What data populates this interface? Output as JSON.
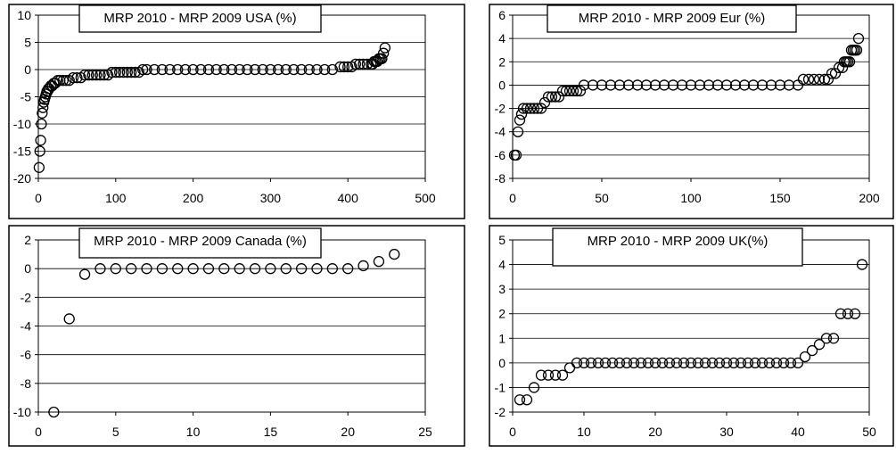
{
  "chart_data": [
    {
      "type": "scatter",
      "title": "MRP 2010 - MRP 2009 USA (%)",
      "xlim": [
        0,
        500
      ],
      "ylim": [
        -20,
        10
      ],
      "x_ticks": [
        "0",
        "100",
        "200",
        "300",
        "400",
        "500"
      ],
      "y_ticks": [
        "10",
        "5",
        "0",
        "-5",
        "-10",
        "-15",
        "-20"
      ],
      "grid": "horizontal",
      "marker": "open-circle",
      "series": [
        {
          "points": [
            [
              1,
              -18
            ],
            [
              2,
              -15
            ],
            [
              3,
              -13
            ],
            [
              4,
              -10
            ],
            [
              5,
              -8
            ],
            [
              6,
              -7
            ],
            [
              7,
              -6
            ],
            [
              8,
              -5.5
            ],
            [
              9,
              -5
            ],
            [
              10,
              -4.5
            ],
            [
              11,
              -4
            ],
            [
              12,
              -4
            ],
            [
              13,
              -3.5
            ],
            [
              14,
              -3.5
            ],
            [
              16,
              -3
            ],
            [
              18,
              -3
            ],
            [
              20,
              -2.5
            ],
            [
              22,
              -2.5
            ],
            [
              25,
              -2
            ],
            [
              28,
              -2
            ],
            [
              32,
              -2
            ],
            [
              36,
              -2
            ],
            [
              40,
              -2
            ],
            [
              45,
              -1.5
            ],
            [
              50,
              -1.5
            ],
            [
              55,
              -1.5
            ],
            [
              60,
              -1
            ],
            [
              65,
              -1
            ],
            [
              70,
              -1
            ],
            [
              75,
              -1
            ],
            [
              80,
              -1
            ],
            [
              85,
              -1
            ],
            [
              90,
              -1
            ],
            [
              95,
              -0.5
            ],
            [
              100,
              -0.5
            ],
            [
              105,
              -0.5
            ],
            [
              110,
              -0.5
            ],
            [
              115,
              -0.5
            ],
            [
              120,
              -0.5
            ],
            [
              125,
              -0.5
            ],
            [
              130,
              -0.5
            ],
            [
              135,
              0
            ],
            [
              140,
              0
            ],
            [
              150,
              0
            ],
            [
              160,
              0
            ],
            [
              170,
              0
            ],
            [
              180,
              0
            ],
            [
              190,
              0
            ],
            [
              200,
              0
            ],
            [
              210,
              0
            ],
            [
              220,
              0
            ],
            [
              230,
              0
            ],
            [
              240,
              0
            ],
            [
              250,
              0
            ],
            [
              260,
              0
            ],
            [
              270,
              0
            ],
            [
              280,
              0
            ],
            [
              290,
              0
            ],
            [
              300,
              0
            ],
            [
              310,
              0
            ],
            [
              320,
              0
            ],
            [
              330,
              0
            ],
            [
              340,
              0
            ],
            [
              350,
              0
            ],
            [
              360,
              0
            ],
            [
              370,
              0
            ],
            [
              380,
              0
            ],
            [
              390,
              0.5
            ],
            [
              395,
              0.5
            ],
            [
              400,
              0.5
            ],
            [
              405,
              0.5
            ],
            [
              410,
              1
            ],
            [
              415,
              1
            ],
            [
              420,
              1
            ],
            [
              425,
              1
            ],
            [
              430,
              1
            ],
            [
              432,
              1
            ],
            [
              434,
              1.5
            ],
            [
              436,
              1.5
            ],
            [
              438,
              1.5
            ],
            [
              440,
              2
            ],
            [
              442,
              2
            ],
            [
              444,
              2
            ],
            [
              446,
              3
            ],
            [
              448,
              4
            ]
          ]
        }
      ]
    },
    {
      "type": "scatter",
      "title": "MRP 2010 - MRP 2009  Eur (%)",
      "xlim": [
        0,
        200
      ],
      "ylim": [
        -8,
        6
      ],
      "x_ticks": [
        "0",
        "50",
        "100",
        "150",
        "200"
      ],
      "y_ticks": [
        "6",
        "4",
        "2",
        "0",
        "-2",
        "-4",
        "-6",
        "-8"
      ],
      "grid": "horizontal",
      "marker": "open-circle",
      "series": [
        {
          "points": [
            [
              1,
              -6
            ],
            [
              2,
              -6
            ],
            [
              3,
              -4
            ],
            [
              4,
              -3
            ],
            [
              5,
              -2.5
            ],
            [
              6,
              -2
            ],
            [
              8,
              -2
            ],
            [
              10,
              -2
            ],
            [
              12,
              -2
            ],
            [
              14,
              -2
            ],
            [
              16,
              -2
            ],
            [
              18,
              -1.5
            ],
            [
              20,
              -1
            ],
            [
              22,
              -1
            ],
            [
              24,
              -1
            ],
            [
              26,
              -1
            ],
            [
              28,
              -0.5
            ],
            [
              30,
              -0.5
            ],
            [
              32,
              -0.5
            ],
            [
              34,
              -0.5
            ],
            [
              36,
              -0.5
            ],
            [
              38,
              -0.5
            ],
            [
              40,
              0
            ],
            [
              45,
              0
            ],
            [
              50,
              0
            ],
            [
              55,
              0
            ],
            [
              60,
              0
            ],
            [
              65,
              0
            ],
            [
              70,
              0
            ],
            [
              75,
              0
            ],
            [
              80,
              0
            ],
            [
              85,
              0
            ],
            [
              90,
              0
            ],
            [
              95,
              0
            ],
            [
              100,
              0
            ],
            [
              105,
              0
            ],
            [
              110,
              0
            ],
            [
              115,
              0
            ],
            [
              120,
              0
            ],
            [
              125,
              0
            ],
            [
              130,
              0
            ],
            [
              135,
              0
            ],
            [
              140,
              0
            ],
            [
              145,
              0
            ],
            [
              150,
              0
            ],
            [
              155,
              0
            ],
            [
              160,
              0
            ],
            [
              163,
              0.5
            ],
            [
              166,
              0.5
            ],
            [
              169,
              0.5
            ],
            [
              172,
              0.5
            ],
            [
              175,
              0.5
            ],
            [
              177,
              0.5
            ],
            [
              179,
              1
            ],
            [
              181,
              1
            ],
            [
              183,
              1.5
            ],
            [
              185,
              1.5
            ],
            [
              186,
              2
            ],
            [
              187,
              2
            ],
            [
              188,
              2
            ],
            [
              189,
              2
            ],
            [
              190,
              3
            ],
            [
              191,
              3
            ],
            [
              192,
              3
            ],
            [
              193,
              3
            ],
            [
              194,
              4
            ]
          ]
        }
      ]
    },
    {
      "type": "scatter",
      "title": "MRP 2010 - MRP 2009  Canada (%)",
      "xlim": [
        0,
        25
      ],
      "ylim": [
        -10,
        2
      ],
      "x_ticks": [
        "0",
        "5",
        "10",
        "15",
        "20",
        "25"
      ],
      "y_ticks": [
        "2",
        "0",
        "-2",
        "-4",
        "-6",
        "-8",
        "-10"
      ],
      "grid": "horizontal",
      "marker": "open-circle",
      "series": [
        {
          "points": [
            [
              1,
              -10
            ],
            [
              2,
              -3.5
            ],
            [
              3,
              -0.4
            ],
            [
              4,
              0
            ],
            [
              5,
              0
            ],
            [
              6,
              0
            ],
            [
              7,
              0
            ],
            [
              8,
              0
            ],
            [
              9,
              0
            ],
            [
              10,
              0
            ],
            [
              11,
              0
            ],
            [
              12,
              0
            ],
            [
              13,
              0
            ],
            [
              14,
              0
            ],
            [
              15,
              0
            ],
            [
              16,
              0
            ],
            [
              17,
              0
            ],
            [
              18,
              0
            ],
            [
              19,
              0
            ],
            [
              20,
              0
            ],
            [
              21,
              0.2
            ],
            [
              22,
              0.5
            ],
            [
              23,
              1
            ]
          ]
        }
      ]
    },
    {
      "type": "scatter",
      "title": "MRP 2010 - MRP 2009  UK(%)",
      "xlim": [
        0,
        50
      ],
      "ylim": [
        -2,
        5
      ],
      "x_ticks": [
        "0",
        "10",
        "20",
        "30",
        "40",
        "50"
      ],
      "y_ticks": [
        "5",
        "4",
        "3",
        "2",
        "1",
        "0",
        "-1",
        "-2"
      ],
      "grid": "horizontal",
      "marker": "open-circle",
      "series": [
        {
          "points": [
            [
              1,
              -1.5
            ],
            [
              2,
              -1.5
            ],
            [
              3,
              -1
            ],
            [
              4,
              -0.5
            ],
            [
              5,
              -0.5
            ],
            [
              6,
              -0.5
            ],
            [
              7,
              -0.5
            ],
            [
              8,
              -0.2
            ],
            [
              9,
              0
            ],
            [
              10,
              0
            ],
            [
              11,
              0
            ],
            [
              12,
              0
            ],
            [
              13,
              0
            ],
            [
              14,
              0
            ],
            [
              15,
              0
            ],
            [
              16,
              0
            ],
            [
              17,
              0
            ],
            [
              18,
              0
            ],
            [
              19,
              0
            ],
            [
              20,
              0
            ],
            [
              21,
              0
            ],
            [
              22,
              0
            ],
            [
              23,
              0
            ],
            [
              24,
              0
            ],
            [
              25,
              0
            ],
            [
              26,
              0
            ],
            [
              27,
              0
            ],
            [
              28,
              0
            ],
            [
              29,
              0
            ],
            [
              30,
              0
            ],
            [
              31,
              0
            ],
            [
              32,
              0
            ],
            [
              33,
              0
            ],
            [
              34,
              0
            ],
            [
              35,
              0
            ],
            [
              36,
              0
            ],
            [
              37,
              0
            ],
            [
              38,
              0
            ],
            [
              39,
              0
            ],
            [
              40,
              0
            ],
            [
              41,
              0.25
            ],
            [
              42,
              0.5
            ],
            [
              43,
              0.75
            ],
            [
              44,
              1
            ],
            [
              45,
              1
            ],
            [
              46,
              2
            ],
            [
              47,
              2
            ],
            [
              48,
              2
            ],
            [
              49,
              4
            ]
          ]
        }
      ]
    }
  ]
}
